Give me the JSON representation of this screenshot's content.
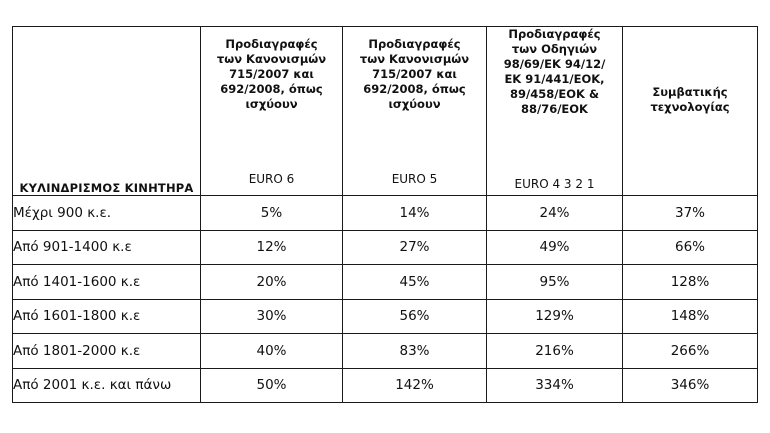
{
  "table": {
    "corner_label": "ΚΥΛΙΝΔΡΙΣΜΟΣ ΚΙΝΗΤΗΡΑ",
    "columns": [
      {
        "spec": "Προδιαγραφές των Κανονισμών 715/2007 και 692/2008, όπως ισχύουν",
        "euro": "EURO 6"
      },
      {
        "spec": "Προδιαγραφές των Κανονισμών 715/2007 και 692/2008, όπως ισχύουν",
        "euro": "EURO 5"
      },
      {
        "spec": "Προδιαγραφές των Οδηγιών 98/69/ΕΚ 94/12/ΕΚ 91/441/ΕΟΚ, 89/458/ΕΟΚ & 88/76/ΕΟΚ",
        "euro": "EURO 4 3 2 1"
      },
      {
        "spec": "Συμβατικής τεχνολογίας",
        "euro": ""
      }
    ],
    "rows": [
      {
        "label": "Μέχρι 900 κ.ε.",
        "values": [
          "5%",
          "14%",
          "24%",
          "37%"
        ]
      },
      {
        "label": "Από 901-1400 κ.ε",
        "values": [
          "12%",
          "27%",
          "49%",
          "66%"
        ]
      },
      {
        "label": "Από 1401-1600 κ.ε",
        "values": [
          "20%",
          "45%",
          "95%",
          "128%"
        ]
      },
      {
        "label": "Από 1601-1800 κ.ε",
        "values": [
          "30%",
          "56%",
          "129%",
          "148%"
        ]
      },
      {
        "label": "Από 1801-2000 κ.ε",
        "values": [
          "40%",
          "83%",
          "216%",
          "266%"
        ]
      },
      {
        "label": "Από 2001 κ.ε. και πάνω",
        "values": [
          "50%",
          "142%",
          "334%",
          "346%"
        ]
      }
    ]
  }
}
